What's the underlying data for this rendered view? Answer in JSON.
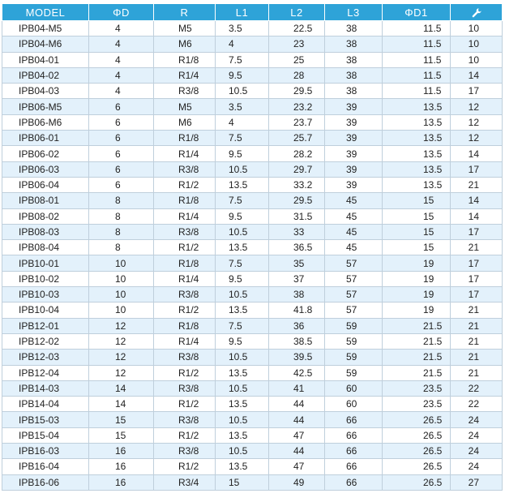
{
  "header": {
    "model": "MODEL",
    "phi_d": "ΦD",
    "r": "R",
    "l1": "L1",
    "l2": "L2",
    "l3": "L3",
    "phi_d1": "ΦD1",
    "wrench_icon": "wrench-icon"
  },
  "colors": {
    "header_bg": "#2ea3d8",
    "stripe": "#e3f1fb",
    "border": "#bfcfdc"
  },
  "rows": [
    [
      "IPB04-M5",
      "4",
      "M5",
      "3.5",
      "22.5",
      "38",
      "11.5",
      "10"
    ],
    [
      "IPB04-M6",
      "4",
      "M6",
      "4",
      "23",
      "38",
      "11.5",
      "10"
    ],
    [
      "IPB04-01",
      "4",
      "R1/8",
      "7.5",
      "25",
      "38",
      "11.5",
      "10"
    ],
    [
      "IPB04-02",
      "4",
      "R1/4",
      "9.5",
      "28",
      "38",
      "11.5",
      "14"
    ],
    [
      "IPB04-03",
      "4",
      "R3/8",
      "10.5",
      "29.5",
      "38",
      "11.5",
      "17"
    ],
    [
      "IPB06-M5",
      "6",
      "M5",
      "3.5",
      "23.2",
      "39",
      "13.5",
      "12"
    ],
    [
      "IPB06-M6",
      "6",
      "M6",
      "4",
      "23.7",
      "39",
      "13.5",
      "12"
    ],
    [
      "IPB06-01",
      "6",
      "R1/8",
      "7.5",
      "25.7",
      "39",
      "13.5",
      "12"
    ],
    [
      "IPB06-02",
      "6",
      "R1/4",
      "9.5",
      "28.2",
      "39",
      "13.5",
      "14"
    ],
    [
      "IPB06-03",
      "6",
      "R3/8",
      "10.5",
      "29.7",
      "39",
      "13.5",
      "17"
    ],
    [
      "IPB06-04",
      "6",
      "R1/2",
      "13.5",
      "33.2",
      "39",
      "13.5",
      "21"
    ],
    [
      "IPB08-01",
      "8",
      "R1/8",
      "7.5",
      "29.5",
      "45",
      "15",
      "14"
    ],
    [
      "IPB08-02",
      "8",
      "R1/4",
      "9.5",
      "31.5",
      "45",
      "15",
      "14"
    ],
    [
      "IPB08-03",
      "8",
      "R3/8",
      "10.5",
      "33",
      "45",
      "15",
      "17"
    ],
    [
      "IPB08-04",
      "8",
      "R1/2",
      "13.5",
      "36.5",
      "45",
      "15",
      "21"
    ],
    [
      "IPB10-01",
      "10",
      "R1/8",
      "7.5",
      "35",
      "57",
      "19",
      "17"
    ],
    [
      "IPB10-02",
      "10",
      "R1/4",
      "9.5",
      "37",
      "57",
      "19",
      "17"
    ],
    [
      "IPB10-03",
      "10",
      "R3/8",
      "10.5",
      "38",
      "57",
      "19",
      "17"
    ],
    [
      "IPB10-04",
      "10",
      "R1/2",
      "13.5",
      "41.8",
      "57",
      "19",
      "21"
    ],
    [
      "IPB12-01",
      "12",
      "R1/8",
      "7.5",
      "36",
      "59",
      "21.5",
      "21"
    ],
    [
      "IPB12-02",
      "12",
      "R1/4",
      "9.5",
      "38.5",
      "59",
      "21.5",
      "21"
    ],
    [
      "IPB12-03",
      "12",
      "R3/8",
      "10.5",
      "39.5",
      "59",
      "21.5",
      "21"
    ],
    [
      "IPB12-04",
      "12",
      "R1/2",
      "13.5",
      "42.5",
      "59",
      "21.5",
      "21"
    ],
    [
      "IPB14-03",
      "14",
      "R3/8",
      "10.5",
      "41",
      "60",
      "23.5",
      "22"
    ],
    [
      "IPB14-04",
      "14",
      "R1/2",
      "13.5",
      "44",
      "60",
      "23.5",
      "22"
    ],
    [
      "IPB15-03",
      "15",
      "R3/8",
      "10.5",
      "44",
      "66",
      "26.5",
      "24"
    ],
    [
      "IPB15-04",
      "15",
      "R1/2",
      "13.5",
      "47",
      "66",
      "26.5",
      "24"
    ],
    [
      "IPB16-03",
      "16",
      "R3/8",
      "10.5",
      "44",
      "66",
      "26.5",
      "24"
    ],
    [
      "IPB16-04",
      "16",
      "R1/2",
      "13.5",
      "47",
      "66",
      "26.5",
      "24"
    ],
    [
      "IPB16-06",
      "16",
      "R3/4",
      "15",
      "49",
      "66",
      "26.5",
      "27"
    ]
  ]
}
